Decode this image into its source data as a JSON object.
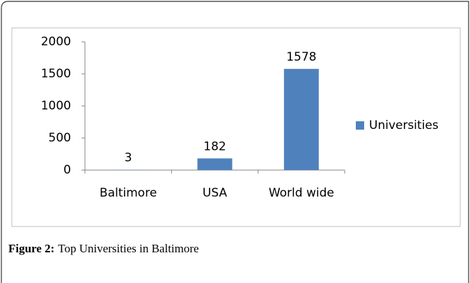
{
  "chart_data": {
    "type": "bar",
    "categories": [
      "Baltimore",
      "USA",
      "World wide"
    ],
    "series": [
      {
        "name": "Universities",
        "color": "#4f81bd",
        "values": [
          3,
          182,
          1578
        ]
      }
    ],
    "ylim": [
      0,
      2000
    ],
    "yticks": [
      0,
      500,
      1000,
      1500,
      2000
    ],
    "grid": false,
    "legend": "right"
  },
  "caption": {
    "label": "Figure 2:",
    "text": "Top Universities in Baltimore"
  }
}
